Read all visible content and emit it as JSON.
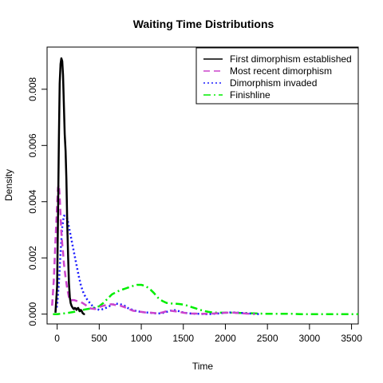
{
  "chart_data": {
    "type": "line",
    "title": "Waiting Time Distributions",
    "xlabel": "Time",
    "ylabel": "Density",
    "xlim": [
      -120,
      3580
    ],
    "ylim": [
      -0.00035,
      0.0095
    ],
    "xticks": [
      0,
      500,
      1000,
      1500,
      2000,
      2500,
      3000,
      3500
    ],
    "xtick_labels": [
      "0",
      "500",
      "1000",
      "1500",
      "2000",
      "2500",
      "3000",
      "3500"
    ],
    "yticks": [
      0.0,
      0.002,
      0.004,
      0.006,
      0.008
    ],
    "ytick_labels": [
      "0.000",
      "0.002",
      "0.004",
      "0.006",
      "0.008"
    ],
    "grid": false,
    "legend_position": "top-right",
    "series": [
      {
        "name": "First dimorphism established",
        "color": "#000000",
        "dash": "solid",
        "width": 2.5,
        "x": [
          -20,
          0,
          10,
          20,
          30,
          40,
          50,
          60,
          70,
          80,
          90,
          100,
          110,
          120,
          130,
          140,
          150,
          160,
          170,
          180,
          190,
          200,
          210,
          220,
          230,
          240,
          250,
          260,
          270,
          280,
          290,
          300,
          310,
          320,
          330
        ],
        "y": [
          5e-05,
          0.001,
          0.0035,
          0.0062,
          0.0082,
          0.0089,
          0.0091,
          0.009,
          0.0085,
          0.0074,
          0.0064,
          0.0058,
          0.0048,
          0.0032,
          0.002,
          0.0011,
          0.0006,
          0.0004,
          0.0003,
          0.00025,
          0.0002,
          0.00018,
          0.00022,
          0.0002,
          0.00015,
          0.0002,
          0.00022,
          0.00015,
          0.0001,
          0.00015,
          0.00012,
          5e-05,
          2e-05,
          0.0,
          0.0
        ]
      },
      {
        "name": "Most recent dimorphism",
        "color": "#cc44cc",
        "dash": "dashed",
        "width": 2.5,
        "x": [
          -60,
          -40,
          -20,
          0,
          10,
          20,
          30,
          40,
          50,
          60,
          70,
          80,
          100,
          120,
          140,
          160,
          180,
          200,
          250,
          300,
          350,
          400,
          450,
          500,
          550,
          600,
          650,
          700,
          750,
          800,
          850,
          900,
          950,
          1000,
          1050,
          1100,
          1150,
          1200,
          1250,
          1300,
          1350,
          1400,
          1450,
          1500,
          1550,
          1600,
          1650,
          1700,
          1750,
          1800,
          1850,
          1900,
          1950,
          2000,
          2050,
          2100,
          2150,
          2200,
          2250,
          2300,
          2350
        ],
        "y": [
          0.0003,
          0.0012,
          0.0026,
          0.0039,
          0.0045,
          0.0046,
          0.0042,
          0.0035,
          0.0029,
          0.0025,
          0.0022,
          0.0018,
          0.0013,
          0.0009,
          0.0006,
          0.00048,
          0.0005,
          0.0005,
          0.00045,
          0.0004,
          0.0003,
          0.0002,
          0.00018,
          0.00025,
          0.0003,
          0.00033,
          0.00035,
          0.00032,
          0.0003,
          0.00025,
          0.00018,
          0.00012,
          0.0001,
          8e-05,
          6e-05,
          5e-05,
          4e-05,
          3e-05,
          6e-05,
          0.0001,
          0.00012,
          0.0001,
          8e-05,
          5e-05,
          3e-05,
          2e-05,
          2e-05,
          1e-05,
          1e-05,
          1e-05,
          2e-05,
          3e-05,
          4e-05,
          5e-05,
          5e-05,
          5e-05,
          4e-05,
          3e-05,
          2e-05,
          1e-05,
          0.0
        ]
      },
      {
        "name": "Dimorphism invaded",
        "color": "#1a1aff",
        "dash": "dotted",
        "width": 2.5,
        "x": [
          -20,
          0,
          20,
          40,
          60,
          80,
          100,
          120,
          140,
          160,
          180,
          200,
          220,
          240,
          260,
          280,
          300,
          320,
          350,
          400,
          450,
          500,
          550,
          600,
          650,
          700,
          750,
          800,
          850,
          900,
          950,
          1000,
          1050,
          1100,
          1150,
          1200,
          1250,
          1300,
          1350,
          1400,
          1450,
          1500,
          1550,
          1600,
          1650,
          1700,
          1750,
          1800,
          1850,
          1900,
          1950,
          2000,
          2050,
          2100,
          2150,
          2200,
          2250,
          2300,
          2350,
          2400
        ],
        "y": [
          0.0001,
          0.0003,
          0.0011,
          0.0022,
          0.0031,
          0.0035,
          0.0035,
          0.0034,
          0.0031,
          0.0028,
          0.0025,
          0.0022,
          0.0019,
          0.0016,
          0.0013,
          0.00105,
          0.00085,
          0.0007,
          0.00055,
          0.00035,
          0.0002,
          0.00015,
          0.00018,
          0.00025,
          0.00033,
          0.00037,
          0.00035,
          0.0003,
          0.0002,
          0.00015,
          0.0001,
          8e-05,
          6e-05,
          5e-05,
          3e-05,
          2e-05,
          4e-05,
          8e-05,
          0.00012,
          0.00014,
          0.0001,
          6e-05,
          3e-05,
          2e-05,
          1e-05,
          1e-05,
          0.0,
          0.0,
          1e-05,
          2e-05,
          3e-05,
          5e-05,
          6e-05,
          6e-05,
          5e-05,
          4e-05,
          3e-05,
          2e-05,
          1e-05,
          0.0
        ]
      },
      {
        "name": "Finishline",
        "color": "#00ee00",
        "dash": "dotdash",
        "width": 2.5,
        "x": [
          -50,
          0,
          100,
          200,
          300,
          400,
          500,
          550,
          600,
          650,
          700,
          750,
          800,
          850,
          900,
          950,
          1000,
          1050,
          1100,
          1150,
          1200,
          1250,
          1300,
          1350,
          1400,
          1450,
          1500,
          1550,
          1600,
          1650,
          1700,
          1750,
          1800,
          1850,
          1900,
          1950,
          2000,
          2050,
          2100,
          2150,
          2200,
          2250,
          2300,
          2400,
          2500,
          2600,
          2700,
          2800,
          2900,
          3000,
          3100,
          3200,
          3300,
          3400,
          3500,
          3580
        ],
        "y": [
          0.0,
          0.0,
          3e-05,
          8e-05,
          0.00015,
          0.0002,
          0.00028,
          0.0004,
          0.00055,
          0.0007,
          0.00078,
          0.00085,
          0.0009,
          0.00095,
          0.001,
          0.00104,
          0.00104,
          0.001,
          0.0009,
          0.00075,
          0.00058,
          0.00047,
          0.0004,
          0.00038,
          0.00037,
          0.00036,
          0.00034,
          0.0003,
          0.00025,
          0.0002,
          0.00015,
          0.00011,
          8e-05,
          6e-05,
          5e-05,
          5e-05,
          5e-05,
          5e-05,
          5e-05,
          4e-05,
          4e-05,
          4e-05,
          3e-05,
          2e-05,
          1e-05,
          1e-05,
          1e-05,
          1e-05,
          0.0,
          0.0,
          0.0,
          0.0,
          0.0,
          0.0,
          0.0,
          0.0
        ]
      }
    ]
  }
}
